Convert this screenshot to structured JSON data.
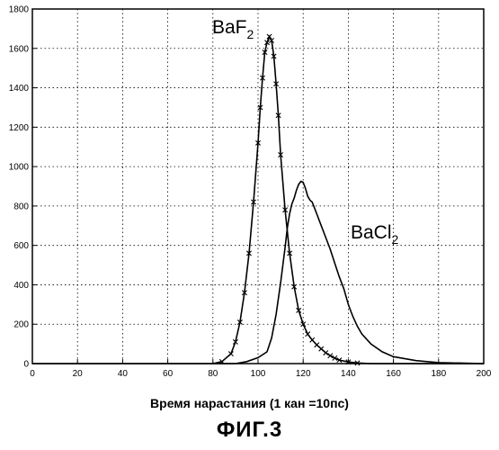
{
  "chart_data": {
    "type": "line",
    "xlabel": "Время нарастания (1 кан  =10пс)",
    "ylabel": "",
    "title": "",
    "xlim": [
      0,
      200
    ],
    "ylim": [
      0,
      1800
    ],
    "xticks": [
      0,
      20,
      40,
      60,
      80,
      100,
      120,
      140,
      160,
      180,
      200
    ],
    "yticks": [
      0,
      200,
      400,
      600,
      800,
      1000,
      1200,
      1400,
      1600,
      1800
    ],
    "grid": true,
    "legend": "none",
    "series": [
      {
        "name": "BaF",
        "name_subscript": "2",
        "marker": "x",
        "x": [
          80,
          84,
          88,
          90,
          92,
          94,
          96,
          98,
          100,
          101,
          102,
          103,
          104,
          105,
          106,
          107,
          108,
          109,
          110,
          112,
          114,
          116,
          118,
          120,
          122,
          124,
          126,
          128,
          130,
          132,
          134,
          136,
          140,
          144,
          150,
          160,
          170,
          200
        ],
        "y": [
          0,
          10,
          50,
          110,
          210,
          360,
          560,
          820,
          1120,
          1300,
          1450,
          1580,
          1630,
          1660,
          1640,
          1560,
          1420,
          1260,
          1060,
          780,
          560,
          390,
          270,
          200,
          150,
          120,
          95,
          75,
          55,
          40,
          28,
          18,
          8,
          3,
          0,
          0,
          0,
          0
        ]
      },
      {
        "name": "BaCl",
        "name_subscript": "2",
        "marker": "none",
        "x": [
          0,
          90,
          95,
          100,
          104,
          106,
          108,
          110,
          112,
          113,
          114,
          115,
          116,
          117,
          118,
          119,
          120,
          121,
          122,
          123,
          124,
          125,
          126,
          128,
          130,
          132,
          134,
          136,
          138,
          140,
          142,
          144,
          146,
          150,
          155,
          160,
          170,
          180,
          200
        ],
        "y": [
          0,
          0,
          10,
          30,
          60,
          130,
          250,
          410,
          590,
          690,
          760,
          810,
          840,
          880,
          910,
          925,
          920,
          890,
          850,
          830,
          820,
          790,
          760,
          700,
          640,
          580,
          510,
          440,
          380,
          300,
          240,
          190,
          150,
          100,
          60,
          35,
          15,
          5,
          0
        ]
      }
    ]
  },
  "figure_label": "ФИГ.3"
}
